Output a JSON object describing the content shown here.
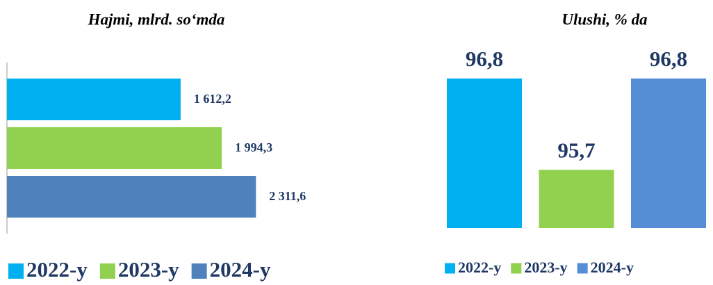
{
  "chart_data": [
    {
      "type": "hbar",
      "title": "Hajmi, mlrd. so‘mda",
      "categories": [
        "2022-y",
        "2023-y",
        "2024-y"
      ],
      "values": [
        1612.2,
        1994.3,
        2311.6
      ],
      "value_labels": [
        "1 612,2",
        "1 994,3",
        "2 311,6"
      ],
      "colors": [
        "#00b0f0",
        "#92d050",
        "#4f81bd"
      ],
      "xlim": [
        0,
        2400
      ]
    },
    {
      "type": "bar",
      "title": "Ulushi, % da",
      "categories": [
        "2022-y",
        "2023-y",
        "2024-y"
      ],
      "values": [
        96.8,
        95.7,
        96.8
      ],
      "value_labels": [
        "96,8",
        "95,7",
        "96,8"
      ],
      "colors": [
        "#00b0f0",
        "#92d050",
        "#558ed5"
      ],
      "ylim": [
        95,
        97
      ]
    }
  ]
}
